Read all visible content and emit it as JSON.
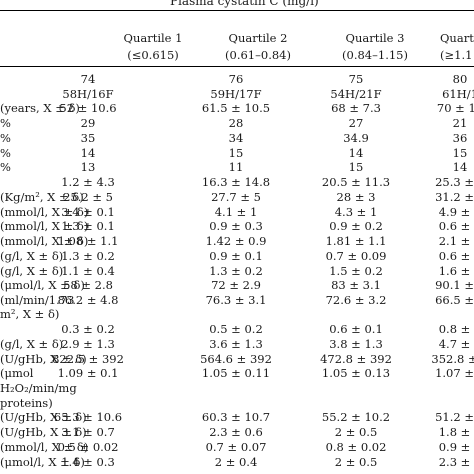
{
  "title": "Plasma cystatin C (mg/l)",
  "headers": [
    {
      "line1": "Quartile 1",
      "line2": "(≤0.615)"
    },
    {
      "line1": "Quartile 2",
      "line2": "(0.61–0.84)"
    },
    {
      "line1": "Quartile 3",
      "line2": "(0.84–1.15)"
    },
    {
      "line1": "Quarti",
      "line2": "(≥1.1"
    }
  ],
  "rows": [
    {
      "label": "",
      "cells": [
        "74",
        "76",
        "75",
        "80"
      ]
    },
    {
      "label": "",
      "cells": [
        "58H/16F",
        "59H/17F",
        "54H/21F",
        "61H/1"
      ]
    },
    {
      "label": "(years, X ± δ)",
      "cells": [
        "52 ± 10.6",
        "61.5 ± 10.5",
        "68 ± 7.3",
        "70 ± 12"
      ]
    },
    {
      "label": "%",
      "cells": [
        "29",
        "28",
        "27",
        "21"
      ]
    },
    {
      "label": "%",
      "cells": [
        "35",
        "34",
        "34.9",
        "36"
      ]
    },
    {
      "label": "%",
      "cells": [
        "14",
        "15",
        "14",
        "15"
      ]
    },
    {
      "label": "%",
      "cells": [
        "13",
        "11",
        "15",
        "14"
      ]
    },
    {
      "label": "",
      "cells": [
        "1.2 ± 4.3",
        "16.3 ± 14.8",
        "20.5 ± 11.3",
        "25.3 ± 1"
      ]
    },
    {
      "label": "(Kg/m², X ± δ)",
      "cells": [
        "25.2 ± 5",
        "27.7 ± 5",
        "28 ± 3",
        "31.2 ± 5"
      ]
    },
    {
      "label": "(mmol/l, X ± δ)",
      "cells": [
        "3.4 ± 0.1",
        "4.1 ± 1",
        "4.3 ± 1",
        "4.9 ± 1"
      ]
    },
    {
      "label": "(mmol/l, X ± δ)",
      "cells": [
        "1.3 ± 0.1",
        "0.9 ± 0.3",
        "0.9 ± 0.2",
        "0.6 ± 0"
      ]
    },
    {
      "label": "(mmol/l, X ± δ)",
      "cells": [
        "1.08 ± 1.1",
        "1.42 ± 0.9",
        "1.81 ± 1.1",
        "2.1 ± 1"
      ]
    },
    {
      "label": "(g/l, X ± δ)",
      "cells": [
        "1.3 ± 0.2",
        "0.9 ± 0.1",
        "0.7 ± 0.09",
        "0.6 ± 0"
      ]
    },
    {
      "label": "(g/l, X ± δ)",
      "cells": [
        "1.1 ± 0.4",
        "1.3 ± 0.2",
        "1.5 ± 0.2",
        "1.6 ± 0"
      ]
    },
    {
      "label": "(μmol/l, X ± δ)",
      "cells": [
        "58 ± 2.8",
        "72 ± 2.9",
        "83 ± 3.1",
        "90.1 ± 3"
      ]
    },
    {
      "label": "(ml/min/1.73",
      "cells": [
        "86.2 ± 4.8",
        "76.3 ± 3.1",
        "72.6 ± 3.2",
        "66.5 ± 3"
      ]
    },
    {
      "label": "m², X ± δ)",
      "cells": [
        "",
        "",
        "",
        ""
      ]
    },
    {
      "label": "",
      "cells": [
        "0.3 ± 0.2",
        "0.5 ± 0.2",
        "0.6 ± 0.1",
        "0.8 ± 0"
      ]
    },
    {
      "label": "(g/l, X ± δ)",
      "cells": [
        "2.9 ± 1.3",
        "3.6 ± 1.3",
        "3.8 ± 1.3",
        "4.7 ± 1"
      ]
    },
    {
      "label": "(U/gHb, X ± δ)",
      "cells": [
        "822.5 ± 392",
        "564.6 ± 392",
        "472.8 ± 392",
        "352.8 ± 3"
      ]
    },
    {
      "label": "(μmol",
      "cells": [
        "1.09 ± 0.1",
        "1.05 ± 0.11",
        "1.05 ± 0.13",
        "1.07 ± 0"
      ]
    },
    {
      "label": "H₂O₂/min/mg",
      "cells": [
        "",
        "",
        "",
        ""
      ]
    },
    {
      "label": "proteins)",
      "cells": [
        "",
        "",
        "",
        ""
      ]
    },
    {
      "label": "(U/gHb, X ± δ)",
      "cells": [
        "65.3 ± 10.6",
        "60.3 ± 10.7",
        "55.2 ± 10.2",
        "51.2 ± 1"
      ]
    },
    {
      "label": "(U/gHb, X ± δ)",
      "cells": [
        "3.1 ± 0.7",
        "2.3 ± 0.6",
        "2 ± 0.5",
        "1.8 ± 0"
      ]
    },
    {
      "label": "(mmol/l, X ± δ)",
      "cells": [
        "0.5 ± 0.02",
        "0.7 ± 0.07",
        "0.8 ± 0.02",
        "0.9 ± 0"
      ]
    },
    {
      "label": "(μmol/l, X ± δ)",
      "cells": [
        "1.4 ± 0.3",
        "2 ± 0.4",
        "2 ± 0.5",
        "2.3 ± 0"
      ]
    }
  ]
}
